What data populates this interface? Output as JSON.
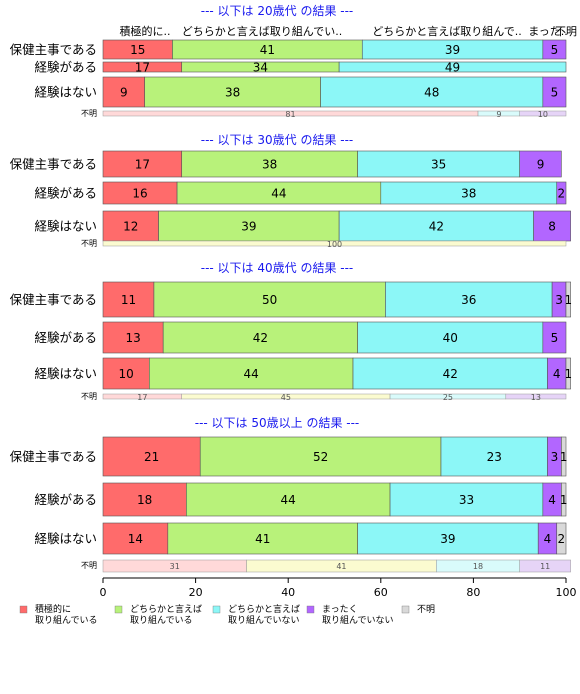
{
  "chart_data": {
    "type": "bar",
    "orientation": "horizontal",
    "stacked": true,
    "xlim": [
      0,
      100
    ],
    "xticks": [
      "0",
      "20",
      "40",
      "60",
      "80",
      "100"
    ],
    "legend_placement": "bottom",
    "categories": [
      {
        "label": "積極的に\n取り組んでいる",
        "color": "#ff6b6b"
      },
      {
        "label": "どちらかと言えば\n取り組んでいる",
        "color": "#b8f27a"
      },
      {
        "label": "どちらかと言えば\n取り組んでいない",
        "color": "#8cf7f7"
      },
      {
        "label": "まったく\n取り組んでいない",
        "color": "#b266ff"
      },
      {
        "label": "不明",
        "color": "#d9d9d9"
      }
    ],
    "column_headers": [
      "積極的に..",
      "どちらかと言えば取り組んでい..",
      "どちらかと言えば取り組んで..",
      "まった..",
      "不明"
    ],
    "sections": [
      {
        "title": "--- 以下は 20歳代 の結果 ---",
        "rows": [
          {
            "label": "保健主事である",
            "values": [
              15,
              41,
              39,
              5,
              0
            ],
            "labels": [
              "15",
              "41",
              "39",
              "5",
              ""
            ]
          },
          {
            "label": "経験がある",
            "values": [
              17,
              34,
              49,
              0,
              0
            ],
            "labels": [
              "17",
              "34",
              "49",
              "",
              ""
            ]
          },
          {
            "label": "経験はない",
            "values": [
              9,
              38,
              48,
              5,
              0
            ],
            "labels": [
              "9",
              "38",
              "48",
              "5",
              ""
            ]
          }
        ],
        "unknown": {
          "label": "不明",
          "values": [
            81,
            0,
            9,
            10,
            0
          ],
          "labels": [
            "81",
            "",
            "9",
            "10",
            ""
          ]
        }
      },
      {
        "title": "--- 以下は 30歳代 の結果 ---",
        "rows": [
          {
            "label": "保健主事である",
            "values": [
              17,
              38,
              35,
              9,
              0
            ],
            "labels": [
              "17",
              "38",
              "35",
              "9",
              ""
            ]
          },
          {
            "label": "経験がある",
            "values": [
              16,
              44,
              38,
              2,
              0
            ],
            "labels": [
              "16",
              "44",
              "38",
              "2",
              ""
            ]
          },
          {
            "label": "経験はない",
            "values": [
              12,
              39,
              42,
              8,
              0
            ],
            "labels": [
              "12",
              "39",
              "42",
              "8",
              ""
            ]
          }
        ],
        "unknown": {
          "label": "不明",
          "values": [
            0,
            100,
            0,
            0,
            0
          ],
          "labels": [
            "",
            "100",
            "",
            "",
            ""
          ]
        }
      },
      {
        "title": "--- 以下は 40歳代 の結果 ---",
        "rows": [
          {
            "label": "保健主事である",
            "values": [
              11,
              50,
              36,
              3,
              1
            ],
            "labels": [
              "11",
              "50",
              "36",
              "3",
              "1"
            ]
          },
          {
            "label": "経験がある",
            "values": [
              13,
              42,
              40,
              5,
              0
            ],
            "labels": [
              "13",
              "42",
              "40",
              "5",
              ""
            ]
          },
          {
            "label": "経験はない",
            "values": [
              10,
              44,
              42,
              4,
              1
            ],
            "labels": [
              "10",
              "44",
              "42",
              "4",
              "1"
            ]
          }
        ],
        "unknown": {
          "label": "不明",
          "values": [
            17,
            45,
            25,
            13,
            0
          ],
          "labels": [
            "17",
            "45",
            "25",
            "13",
            ""
          ]
        }
      },
      {
        "title": "--- 以下は 50歳以上 の結果 ---",
        "rows": [
          {
            "label": "保健主事である",
            "values": [
              21,
              52,
              23,
              3,
              1
            ],
            "labels": [
              "21",
              "52",
              "23",
              "3",
              "1"
            ]
          },
          {
            "label": "経験がある",
            "values": [
              18,
              44,
              33,
              4,
              1
            ],
            "labels": [
              "18",
              "44",
              "33",
              "4",
              "1"
            ]
          },
          {
            "label": "経験はない",
            "values": [
              14,
              41,
              39,
              4,
              2
            ],
            "labels": [
              "14",
              "41",
              "39",
              "4",
              "2"
            ]
          }
        ],
        "unknown": {
          "label": "不明",
          "values": [
            31,
            41,
            18,
            11,
            0
          ],
          "labels": [
            "31",
            "41",
            "18",
            "11",
            ""
          ]
        }
      }
    ]
  }
}
